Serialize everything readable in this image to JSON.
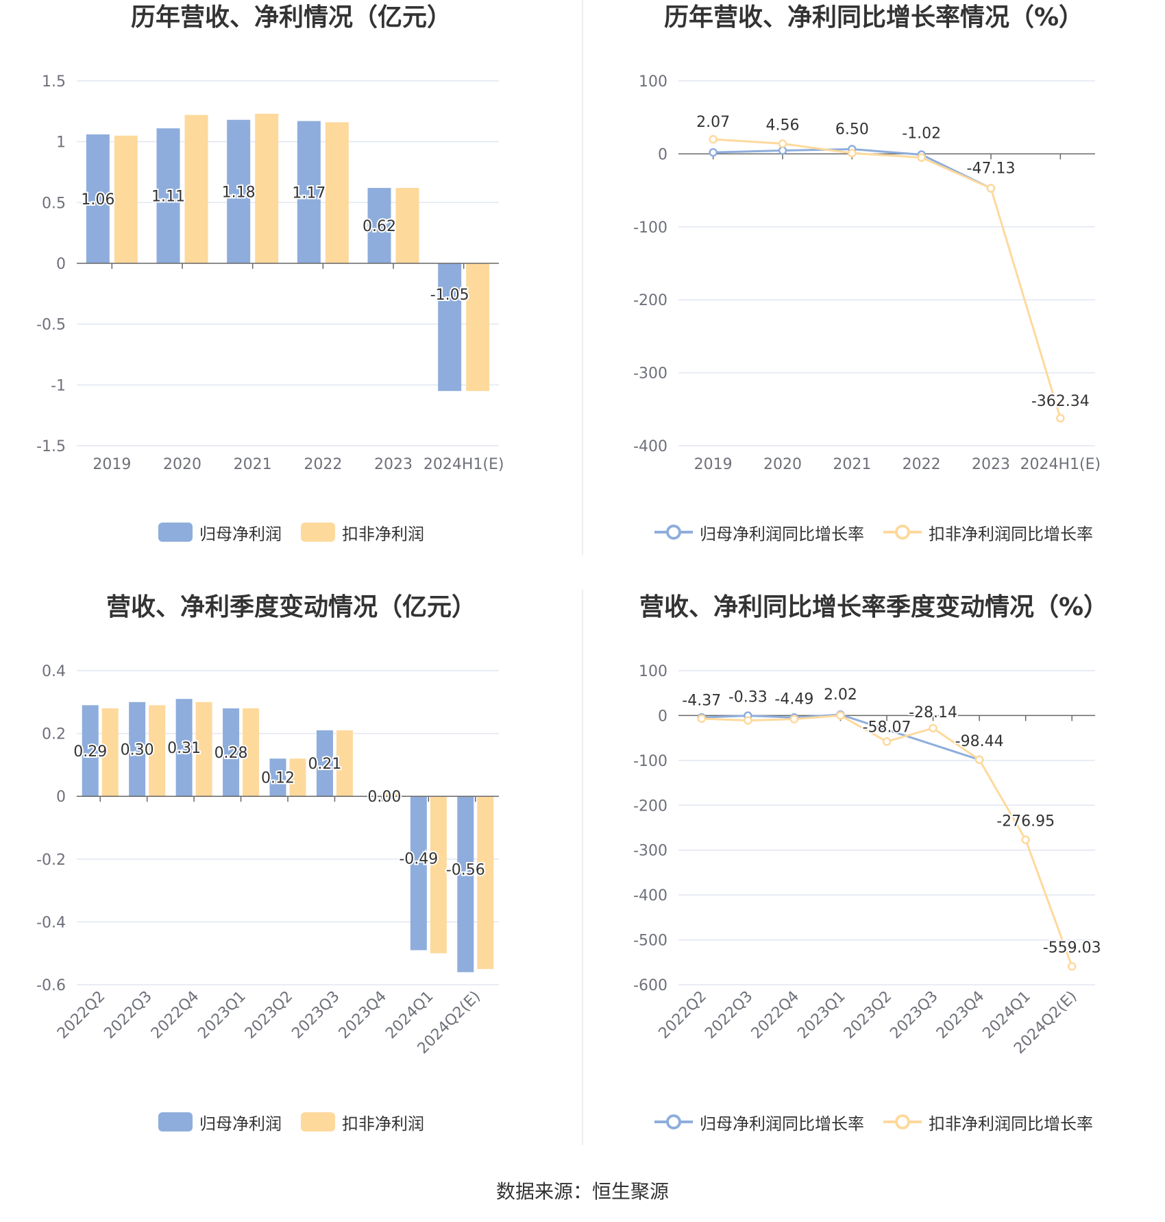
{
  "source": "数据来源：恒生聚源",
  "colors": {
    "blue": "#8eaddc",
    "orange": "#fed99c",
    "grid": "#e0e6f1",
    "axis": "#666666",
    "label": "#6e7079"
  },
  "charts": [
    {
      "title": "历年营收、净利情况（亿元）",
      "legend": [
        "归母净利润",
        "扣非净利润"
      ],
      "chart_data": {
        "type": "bar",
        "categories": [
          "2019",
          "2020",
          "2021",
          "2022",
          "2023",
          "2024H1(E)"
        ],
        "series": [
          {
            "name": "归母净利润",
            "values": [
              1.06,
              1.11,
              1.18,
              1.17,
              0.62,
              -1.05
            ]
          },
          {
            "name": "扣非净利润",
            "values": [
              1.05,
              1.22,
              1.23,
              1.16,
              0.62,
              -1.05
            ]
          }
        ],
        "data_labels": [
          "1.06",
          "1.11",
          "1.18",
          "1.17",
          "0.62",
          "-1.05"
        ],
        "ylim": [
          -1.5,
          1.5
        ],
        "yticks": [
          "-1.5",
          "-1",
          "-0.5",
          "0",
          "0.5",
          "1",
          "1.5"
        ],
        "ytick_values": [
          -1.5,
          -1,
          -0.5,
          0,
          0.5,
          1,
          1.5
        ],
        "grid": true,
        "legend_position": "bottom"
      }
    },
    {
      "title": "历年营收、净利同比增长率情况（%）",
      "legend": [
        "归母净利润同比增长率",
        "扣非净利润同比增长率"
      ],
      "chart_data": {
        "type": "line",
        "categories": [
          "2019",
          "2020",
          "2021",
          "2022",
          "2023",
          "2024H1(E)"
        ],
        "series": [
          {
            "name": "归母净利润同比增长率",
            "values": [
              2.07,
              4.56,
              6.5,
              -1.02,
              -47.13,
              null
            ]
          },
          {
            "name": "扣非净利润同比增长率",
            "values": [
              20,
              14,
              1,
              -5,
              -47.13,
              -362.34
            ]
          }
        ],
        "data_labels": [
          "2.07",
          "4.56",
          "6.50",
          "-1.02",
          "-47.13",
          "-362.34"
        ],
        "ylim": [
          -400,
          100
        ],
        "yticks": [
          "-400",
          "-300",
          "-200",
          "-100",
          "0",
          "100"
        ],
        "ytick_values": [
          -400,
          -300,
          -200,
          -100,
          0,
          100
        ],
        "grid": true,
        "legend_position": "bottom"
      }
    },
    {
      "title": "营收、净利季度变动情况（亿元）",
      "legend": [
        "归母净利润",
        "扣非净利润"
      ],
      "chart_data": {
        "type": "bar",
        "categories": [
          "2022Q2",
          "2022Q3",
          "2022Q4",
          "2023Q1",
          "2023Q2",
          "2023Q3",
          "2023Q4",
          "2024Q1",
          "2024Q2(E)"
        ],
        "series": [
          {
            "name": "归母净利润",
            "values": [
              0.29,
              0.3,
              0.31,
              0.28,
              0.12,
              0.21,
              0.0,
              -0.49,
              -0.56
            ]
          },
          {
            "name": "扣非净利润",
            "values": [
              0.28,
              0.29,
              0.3,
              0.28,
              0.12,
              0.21,
              0.01,
              -0.5,
              -0.55
            ]
          }
        ],
        "data_labels": [
          "0.29",
          "0.30",
          "0.31",
          "0.28",
          "0.12",
          "0.21",
          "0.00",
          "-0.49",
          "-0.56"
        ],
        "ylim": [
          -0.6,
          0.4
        ],
        "yticks": [
          "-0.6",
          "-0.4",
          "-0.2",
          "0",
          "0.2",
          "0.4"
        ],
        "ytick_values": [
          -0.6,
          -0.4,
          -0.2,
          0,
          0.2,
          0.4
        ],
        "grid": true,
        "legend_position": "bottom"
      }
    },
    {
      "title": "营收、净利同比增长率季度变动情况（%）",
      "legend": [
        "归母净利润同比增长率",
        "扣非净利润同比增长率"
      ],
      "chart_data": {
        "type": "line",
        "categories": [
          "2022Q2",
          "2022Q3",
          "2022Q4",
          "2023Q1",
          "2023Q2",
          "2023Q3",
          "2023Q4",
          "2024Q1",
          "2024Q2(E)"
        ],
        "series": [
          {
            "name": "归母净利润同比增长率",
            "values": [
              -4.37,
              -0.33,
              -4.49,
              2.02,
              null,
              null,
              -98.44,
              null,
              null
            ]
          },
          {
            "name": "扣非净利润同比增长率",
            "values": [
              -7,
              -11,
              -8,
              0,
              -58.07,
              -28.14,
              -98.44,
              -276.95,
              -559.03
            ]
          }
        ],
        "data_labels": [
          "-4.37",
          "-0.33",
          "-4.49",
          "2.02",
          "-58.07",
          "-28.14",
          "-98.44",
          "-276.95",
          "-559.03"
        ],
        "ylim": [
          -600,
          100
        ],
        "yticks": [
          "-600",
          "-500",
          "-400",
          "-300",
          "-200",
          "-100",
          "0",
          "100"
        ],
        "ytick_values": [
          -600,
          -500,
          -400,
          -300,
          -200,
          -100,
          0,
          100
        ],
        "grid": true,
        "legend_position": "bottom"
      }
    }
  ]
}
